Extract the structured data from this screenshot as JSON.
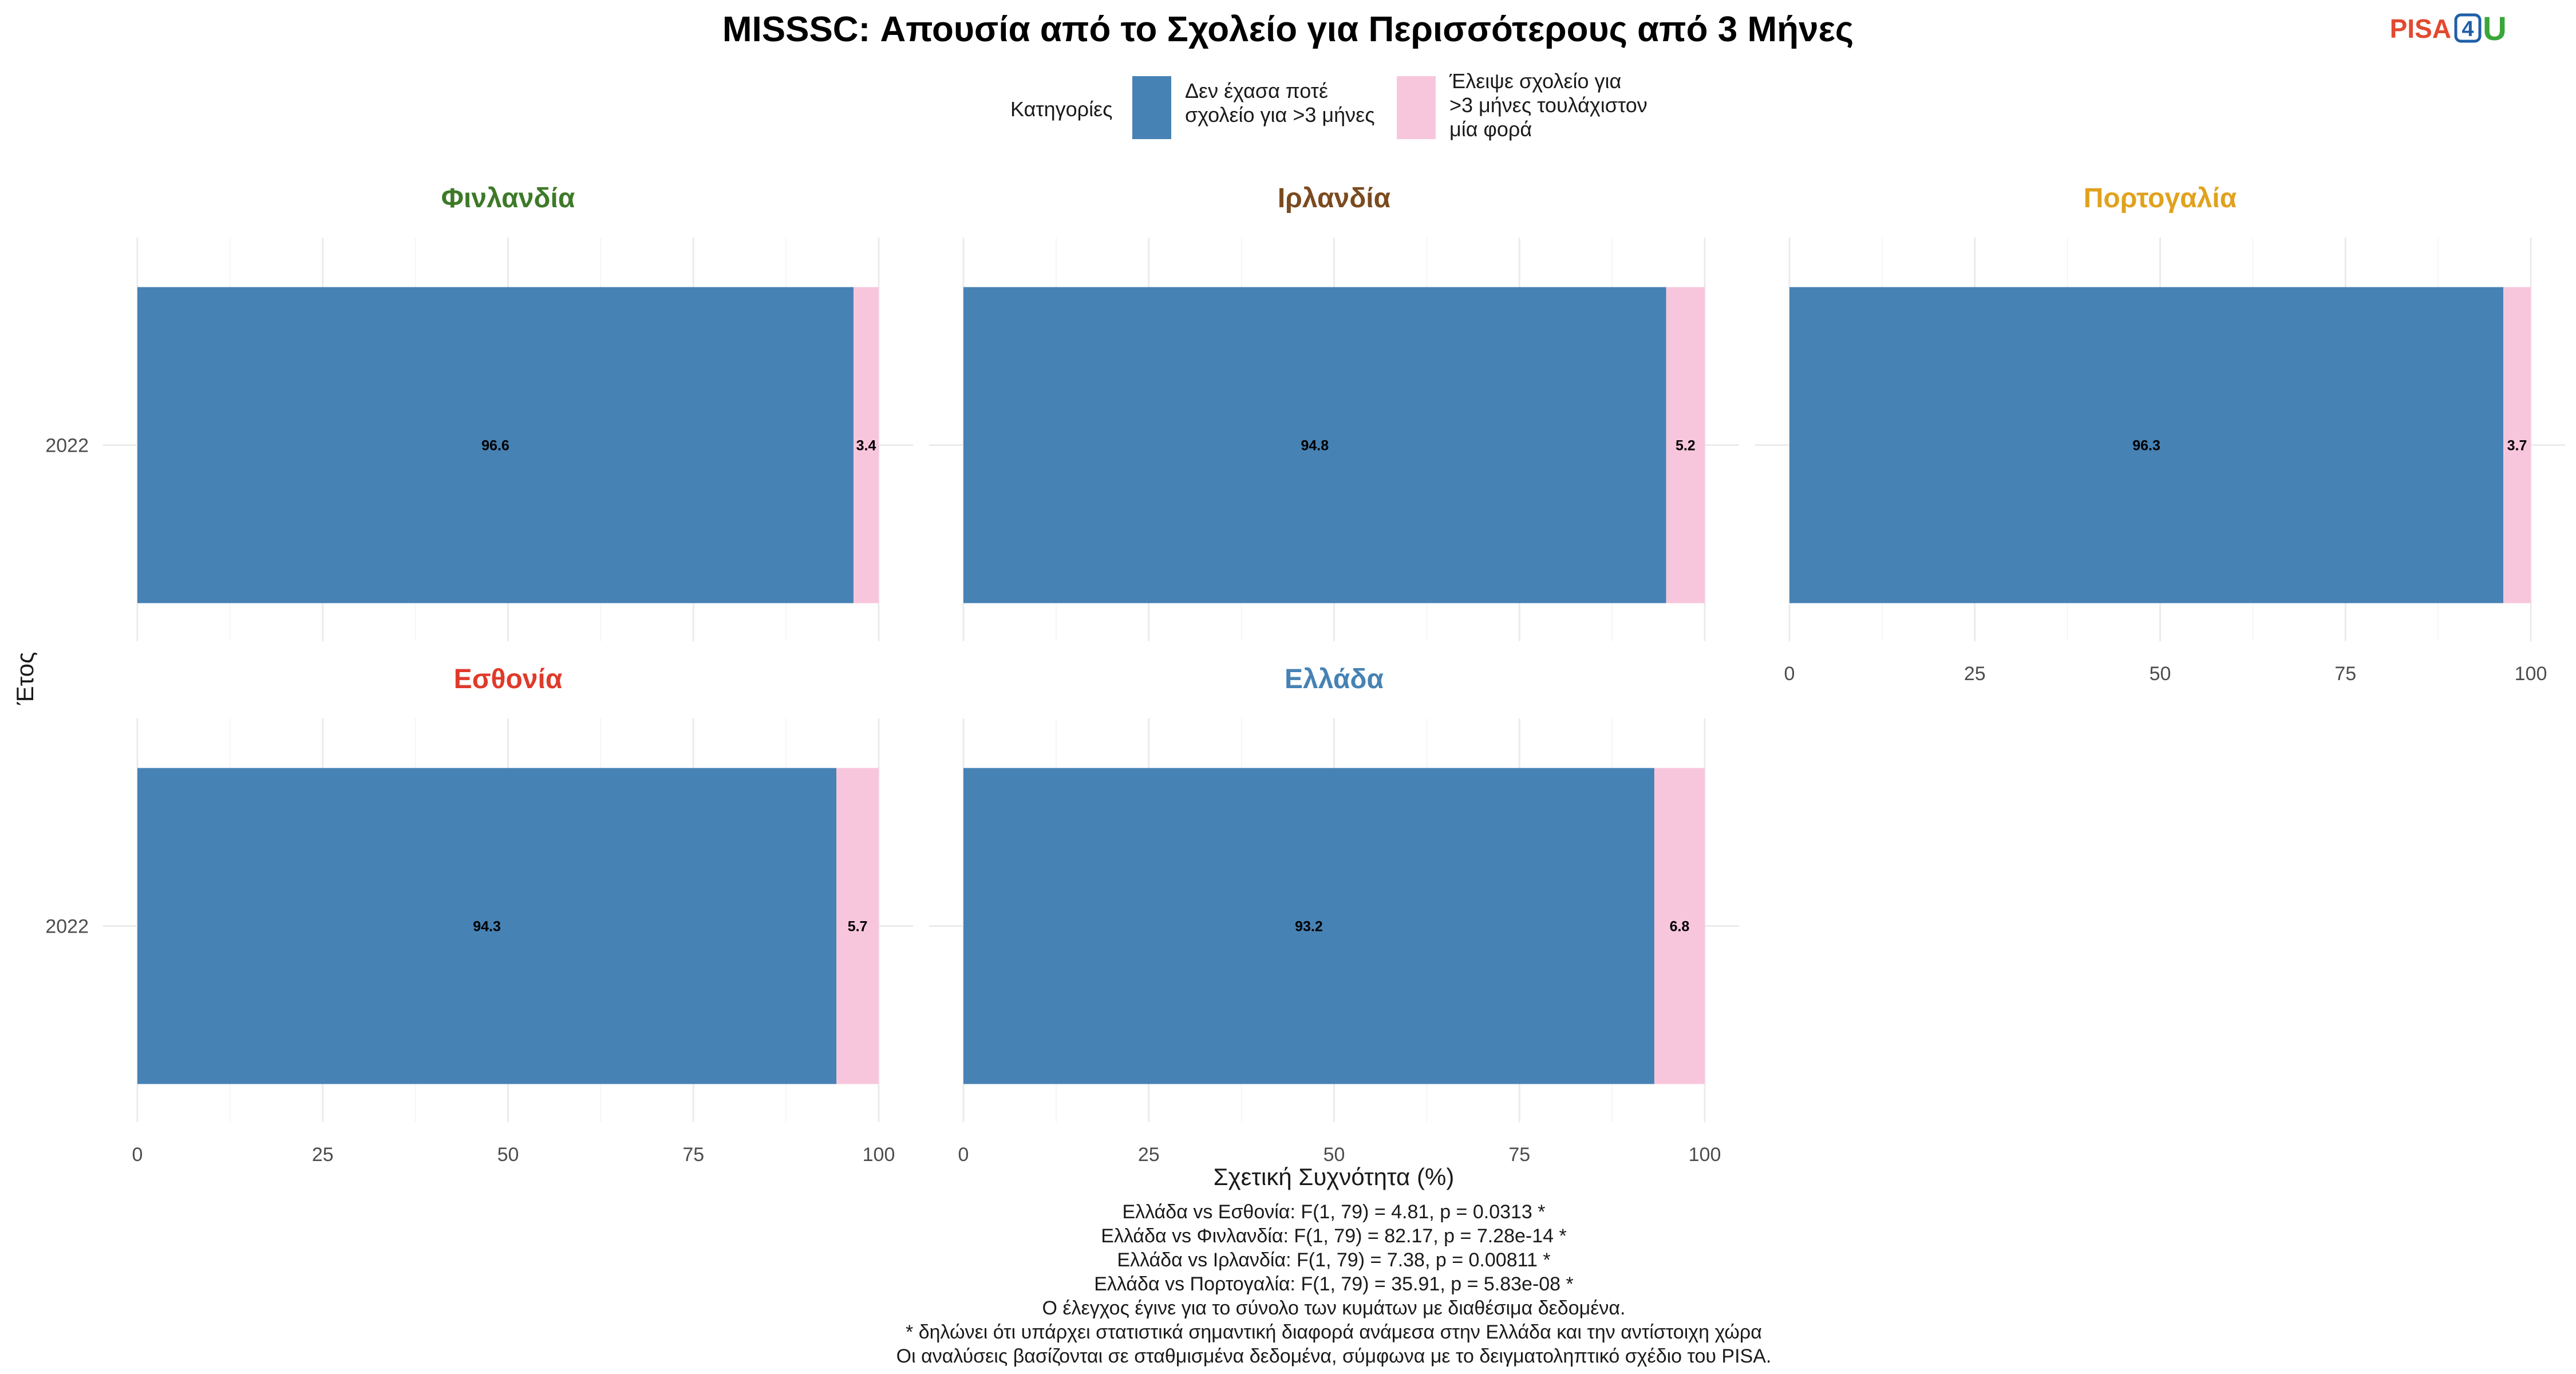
{
  "chart_data": {
    "type": "bar",
    "orientation": "horizontal",
    "stacked": true,
    "title": "MISSSC: Απουσία από το Σχολείο για Περισσότερους από 3 Μήνες",
    "xlabel": "Σχετική Συχνότητα (%)",
    "ylabel": "Έτος",
    "xlim": [
      0,
      100
    ],
    "x_ticks": [
      "0",
      "25",
      "50",
      "75",
      "100"
    ],
    "legend": {
      "title": "Κατηγορίες",
      "placement": "top",
      "items": [
        {
          "name": "never",
          "label_lines": [
            "Δεν έχασα ποτέ",
            "σχολείο για >3 μήνες"
          ],
          "color": "#4682b4"
        },
        {
          "name": "missed",
          "label_lines": [
            "Έλειψε σχολείο για",
            ">3 μήνες τουλάχιστον",
            "μία φορά"
          ],
          "color": "#f8c6dc"
        }
      ]
    },
    "panels": [
      {
        "country": "Φινλανδία",
        "color": "#3d7a28",
        "year": "2022",
        "values": [
          96.6,
          3.4
        ],
        "labels": [
          "96.6",
          "3.4"
        ]
      },
      {
        "country": "Ιρλανδία",
        "color": "#7b4a1e",
        "year": "2022",
        "values": [
          94.8,
          5.2
        ],
        "labels": [
          "94.8",
          "5.2"
        ]
      },
      {
        "country": "Πορτογαλία",
        "color": "#e0a21e",
        "year": "2022",
        "values": [
          96.3,
          3.7
        ],
        "labels": [
          "96.3",
          "3.7"
        ]
      },
      {
        "country": "Εσθονία",
        "color": "#e03a2a",
        "year": "2022",
        "values": [
          94.3,
          5.7
        ],
        "labels": [
          "94.3",
          "5.7"
        ]
      },
      {
        "country": "Ελλάδα",
        "color": "#4682b4",
        "year": "2022",
        "values": [
          93.2,
          6.8
        ],
        "labels": [
          "93.2",
          "6.8"
        ]
      }
    ],
    "notes": [
      "Ελλάδα vs Εσθονία: F(1, 79) = 4.81, p = 0.0313 *",
      "Ελλάδα vs Φινλανδία: F(1, 79) = 82.17, p = 7.28e-14 *",
      "Ελλάδα vs Ιρλανδία: F(1, 79) = 7.38, p = 0.00811 *",
      "Ελλάδα vs Πορτογαλία: F(1, 79) = 35.91, p = 5.83e-08 *",
      "Ο έλεγχος έγινε για το σύνολο των κυμάτων με διαθέσιμα δεδομένα.",
      "* δηλώνει ότι υπάρχει στατιστικά σημαντική διαφορά ανάμεσα στην Ελλάδα και την αντίστοιχη χώρα",
      "Οι αναλύσεις βασίζονται σε σταθμισμένα δεδομένα, σύμφωνα με το δειγματοληπτικό σχέδιο του PISA."
    ]
  },
  "logo": {
    "pisa": "PISA",
    "four": "4",
    "u": "U"
  }
}
